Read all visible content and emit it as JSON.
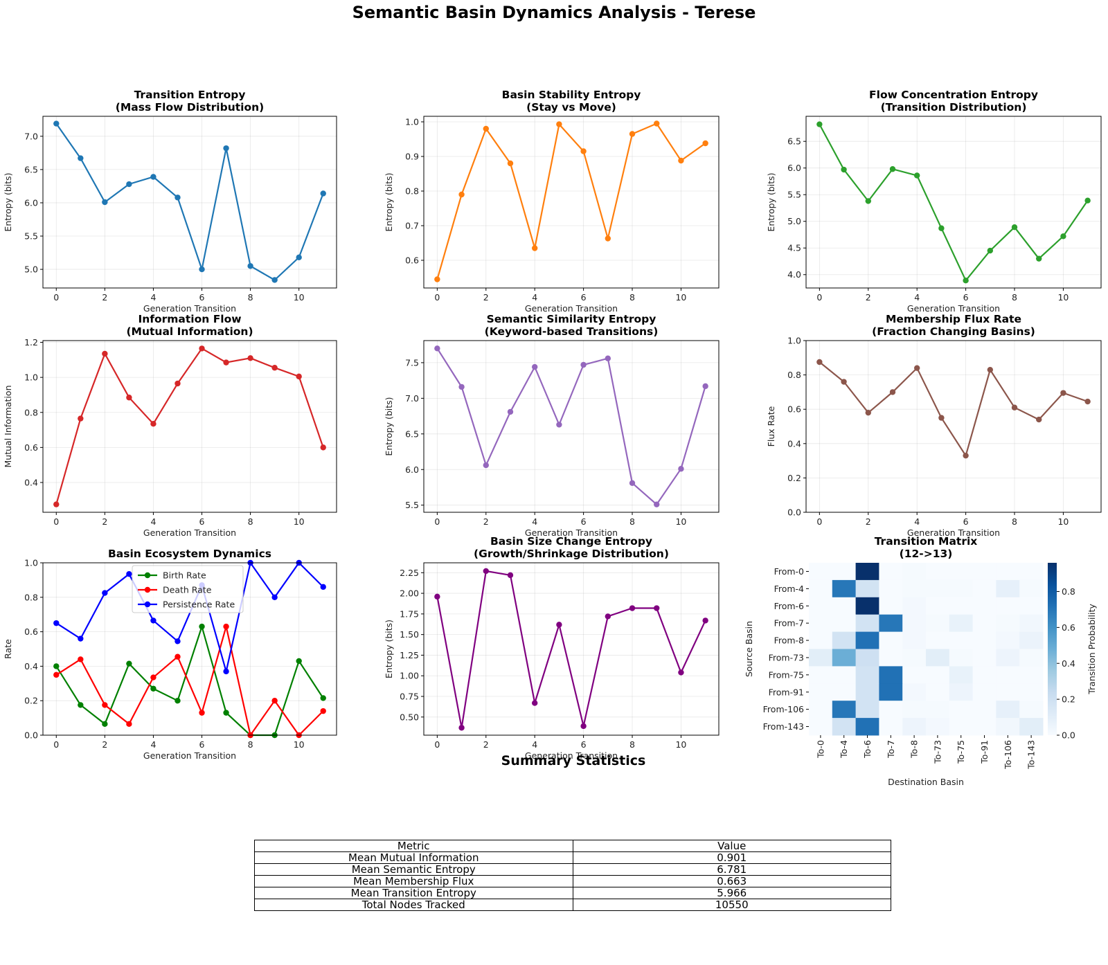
{
  "figure": {
    "title": "Semantic Basin Dynamics Analysis - Terese"
  },
  "colors": {
    "blue": "#1f77b4",
    "orange": "#ff7f0e",
    "green": "#2ca02c",
    "red": "#d62728",
    "purple": "#9467bd",
    "brown": "#8c564b",
    "darkgreen": "#008000",
    "pure_red": "#ff0000",
    "pure_blue": "#0000ff",
    "darkpurple": "#800080"
  },
  "chart_data": [
    {
      "id": "transition-entropy",
      "type": "line",
      "title": "Transition Entropy\n(Mass Flow Distribution)",
      "xlabel": "Generation Transition",
      "ylabel": "Entropy (bits)",
      "xlim": [
        -0.55,
        11.55
      ],
      "ylim": [
        4.72,
        7.3
      ],
      "xticks": [
        0,
        2,
        4,
        6,
        8,
        10
      ],
      "yticks": [
        5.0,
        5.5,
        6.0,
        6.5,
        7.0
      ],
      "ytick_labels": [
        "5.0",
        "5.5",
        "6.0",
        "6.5",
        "7.0"
      ],
      "series": [
        {
          "name": "Transition Entropy",
          "color": "#1f77b4",
          "x": [
            0,
            1,
            2,
            3,
            4,
            5,
            6,
            7,
            8,
            9,
            10,
            11
          ],
          "values": [
            7.19,
            6.67,
            6.01,
            6.28,
            6.39,
            6.08,
            5.0,
            6.82,
            5.05,
            4.84,
            5.18,
            6.14
          ]
        }
      ]
    },
    {
      "id": "basin-stability-entropy",
      "type": "line",
      "title": "Basin Stability Entropy\n(Stay vs Move)",
      "xlabel": "Generation Transition",
      "ylabel": "Entropy (bits)",
      "xlim": [
        -0.55,
        11.55
      ],
      "ylim": [
        0.52,
        1.016
      ],
      "xticks": [
        0,
        2,
        4,
        6,
        8,
        10
      ],
      "yticks": [
        0.6,
        0.7,
        0.8,
        0.9,
        1.0
      ],
      "ytick_labels": [
        "0.6",
        "0.7",
        "0.8",
        "0.9",
        "1.0"
      ],
      "series": [
        {
          "name": "Basin Stability Entropy",
          "color": "#ff7f0e",
          "x": [
            0,
            1,
            2,
            3,
            4,
            5,
            6,
            7,
            8,
            9,
            10,
            11
          ],
          "values": [
            0.545,
            0.79,
            0.98,
            0.88,
            0.635,
            0.993,
            0.915,
            0.663,
            0.965,
            0.995,
            0.888,
            0.938
          ]
        }
      ]
    },
    {
      "id": "flow-concentration-entropy",
      "type": "line",
      "title": "Flow Concentration Entropy\n(Transition Distribution)",
      "xlabel": "Generation Transition",
      "ylabel": "Entropy (bits)",
      "xlim": [
        -0.55,
        11.55
      ],
      "ylim": [
        3.75,
        6.97
      ],
      "xticks": [
        0,
        2,
        4,
        6,
        8,
        10
      ],
      "yticks": [
        4.0,
        4.5,
        5.0,
        5.5,
        6.0,
        6.5
      ],
      "ytick_labels": [
        "4.0",
        "4.5",
        "5.0",
        "5.5",
        "6.0",
        "6.5"
      ],
      "series": [
        {
          "name": "Flow Concentration Entropy",
          "color": "#2ca02c",
          "x": [
            0,
            1,
            2,
            3,
            4,
            5,
            6,
            7,
            8,
            9,
            10,
            11
          ],
          "values": [
            6.82,
            5.97,
            5.38,
            5.98,
            5.86,
            4.87,
            3.89,
            4.45,
            4.89,
            4.3,
            4.72,
            5.39
          ]
        }
      ]
    },
    {
      "id": "information-flow",
      "type": "line",
      "title": "Information Flow\n(Mutual Information)",
      "xlabel": "Generation Transition",
      "ylabel": "Mutual Information",
      "xlim": [
        -0.55,
        11.55
      ],
      "ylim": [
        0.23,
        1.21
      ],
      "xticks": [
        0,
        2,
        4,
        6,
        8,
        10
      ],
      "yticks": [
        0.4,
        0.6,
        0.8,
        1.0,
        1.2
      ],
      "ytick_labels": [
        "0.4",
        "0.6",
        "0.8",
        "1.0",
        "1.2"
      ],
      "series": [
        {
          "name": "Mutual Information",
          "color": "#d62728",
          "x": [
            0,
            1,
            2,
            3,
            4,
            5,
            6,
            7,
            8,
            9,
            10,
            11
          ],
          "values": [
            0.275,
            0.765,
            1.135,
            0.885,
            0.735,
            0.965,
            1.165,
            1.085,
            1.11,
            1.055,
            1.005,
            0.6
          ]
        }
      ]
    },
    {
      "id": "semantic-similarity-entropy",
      "type": "line",
      "title": "Semantic Similarity Entropy\n(Keyword-based Transitions)",
      "xlabel": "Generation Transition",
      "ylabel": "Entropy (bits)",
      "xlim": [
        -0.55,
        11.55
      ],
      "ylim": [
        5.4,
        7.81
      ],
      "xticks": [
        0,
        2,
        4,
        6,
        8,
        10
      ],
      "yticks": [
        5.5,
        6.0,
        6.5,
        7.0,
        7.5
      ],
      "ytick_labels": [
        "5.5",
        "6.0",
        "6.5",
        "7.0",
        "7.5"
      ],
      "series": [
        {
          "name": "Semantic Similarity Entropy",
          "color": "#9467bd",
          "x": [
            0,
            1,
            2,
            3,
            4,
            5,
            6,
            7,
            8,
            9,
            10,
            11
          ],
          "values": [
            7.7,
            7.16,
            6.06,
            6.81,
            7.44,
            6.63,
            7.47,
            7.56,
            5.81,
            5.51,
            6.01,
            7.17
          ]
        }
      ]
    },
    {
      "id": "membership-flux-rate",
      "type": "line",
      "title": "Membership Flux Rate\n(Fraction Changing Basins)",
      "xlabel": "Generation Transition",
      "ylabel": "Flux Rate",
      "xlim": [
        -0.55,
        11.55
      ],
      "ylim": [
        0.0,
        1.0
      ],
      "xticks": [
        0,
        2,
        4,
        6,
        8,
        10
      ],
      "yticks": [
        0.0,
        0.2,
        0.4,
        0.6,
        0.8,
        1.0
      ],
      "ytick_labels": [
        "0.0",
        "0.2",
        "0.4",
        "0.6",
        "0.8",
        "1.0"
      ],
      "series": [
        {
          "name": "Flux Rate",
          "color": "#8c564b",
          "x": [
            0,
            1,
            2,
            3,
            4,
            5,
            6,
            7,
            8,
            9,
            10,
            11
          ],
          "values": [
            0.875,
            0.76,
            0.58,
            0.7,
            0.84,
            0.55,
            0.33,
            0.83,
            0.61,
            0.54,
            0.695,
            0.645
          ]
        }
      ]
    },
    {
      "id": "basin-ecosystem-dynamics",
      "type": "line",
      "title": "Basin Ecosystem Dynamics",
      "xlabel": "Generation Transition",
      "ylabel": "Rate",
      "xlim": [
        -0.55,
        11.55
      ],
      "ylim": [
        0.0,
        1.0
      ],
      "xticks": [
        0,
        2,
        4,
        6,
        8,
        10
      ],
      "yticks": [
        0.0,
        0.2,
        0.4,
        0.6,
        0.8,
        1.0
      ],
      "ytick_labels": [
        "0.0",
        "0.2",
        "0.4",
        "0.6",
        "0.8",
        "1.0"
      ],
      "legend": "upper center",
      "series": [
        {
          "name": "Birth Rate",
          "color": "#008000",
          "x": [
            0,
            1,
            2,
            3,
            4,
            5,
            6,
            7,
            8,
            9,
            10,
            11
          ],
          "values": [
            0.4,
            0.175,
            0.065,
            0.415,
            0.27,
            0.2,
            0.63,
            0.13,
            0.0,
            0.0,
            0.43,
            0.215
          ]
        },
        {
          "name": "Death Rate",
          "color": "#ff0000",
          "x": [
            0,
            1,
            2,
            3,
            4,
            5,
            6,
            7,
            8,
            9,
            10,
            11
          ],
          "values": [
            0.35,
            0.44,
            0.175,
            0.065,
            0.335,
            0.455,
            0.13,
            0.63,
            0.0,
            0.2,
            0.0,
            0.14
          ]
        },
        {
          "name": "Persistence Rate",
          "color": "#0000ff",
          "x": [
            0,
            1,
            2,
            3,
            4,
            5,
            6,
            7,
            8,
            9,
            10,
            11
          ],
          "values": [
            0.65,
            0.56,
            0.825,
            0.935,
            0.665,
            0.545,
            0.87,
            0.37,
            1.0,
            0.8,
            1.0,
            0.86
          ]
        }
      ]
    },
    {
      "id": "basin-size-change-entropy",
      "type": "line",
      "title": "Basin Size Change Entropy\n(Growth/Shrinkage Distribution)",
      "xlabel": "Generation Transition",
      "ylabel": "Entropy (bits)",
      "xlim": [
        -0.55,
        11.55
      ],
      "ylim": [
        0.28,
        2.37
      ],
      "xticks": [
        0,
        2,
        4,
        6,
        8,
        10
      ],
      "yticks": [
        0.5,
        0.75,
        1.0,
        1.25,
        1.5,
        1.75,
        2.0,
        2.25
      ],
      "ytick_labels": [
        "0.50",
        "0.75",
        "1.00",
        "1.25",
        "1.50",
        "1.75",
        "2.00",
        "2.25"
      ],
      "series": [
        {
          "name": "Size Change Entropy",
          "color": "#800080",
          "x": [
            0,
            1,
            2,
            3,
            4,
            5,
            6,
            7,
            8,
            9,
            10,
            11
          ],
          "values": [
            1.96,
            0.37,
            2.27,
            2.22,
            0.67,
            1.62,
            0.39,
            1.72,
            1.82,
            1.82,
            1.04,
            1.67
          ]
        }
      ]
    },
    {
      "id": "transition-matrix",
      "type": "heatmap",
      "title": "Transition Matrix\n(12->13)",
      "xlabel": "Destination Basin",
      "ylabel": "Source Basin",
      "rows": [
        "From-0",
        "From-4",
        "From-6",
        "From-7",
        "From-8",
        "From-73",
        "From-75",
        "From-91",
        "From-106",
        "From-143"
      ],
      "cols": [
        "To-0",
        "To-4",
        "To-6",
        "To-7",
        "To-8",
        "To-73",
        "To-75",
        "To-91",
        "To-106",
        "To-143"
      ],
      "values": [
        [
          0.0,
          0.0,
          0.96,
          0.0,
          0.01,
          0.0,
          0.0,
          0.0,
          0.0,
          0.0
        ],
        [
          0.0,
          0.7,
          0.18,
          0.0,
          0.01,
          0.01,
          0.01,
          0.0,
          0.08,
          0.01
        ],
        [
          0.0,
          0.0,
          0.96,
          0.0,
          0.02,
          0.0,
          0.0,
          0.0,
          0.0,
          0.0
        ],
        [
          0.0,
          0.0,
          0.18,
          0.7,
          0.02,
          0.01,
          0.07,
          0.0,
          0.01,
          0.03
        ],
        [
          0.0,
          0.18,
          0.72,
          0.0,
          0.02,
          0.0,
          0.0,
          0.0,
          0.02,
          0.06
        ],
        [
          0.1,
          0.48,
          0.2,
          0.0,
          0.01,
          0.1,
          0.01,
          0.0,
          0.05,
          0.01
        ],
        [
          0.0,
          0.0,
          0.18,
          0.72,
          0.0,
          0.0,
          0.07,
          0.0,
          0.0,
          0.0
        ],
        [
          0.0,
          0.0,
          0.18,
          0.72,
          0.02,
          0.0,
          0.05,
          0.0,
          0.0,
          0.0
        ],
        [
          0.0,
          0.7,
          0.18,
          0.0,
          0.01,
          0.01,
          0.0,
          0.0,
          0.08,
          0.01
        ],
        [
          0.0,
          0.18,
          0.72,
          0.0,
          0.05,
          0.02,
          0.0,
          0.0,
          0.03,
          0.1
        ]
      ],
      "colorbar": {
        "label": "Transition Probability",
        "range": [
          0.0,
          0.96
        ],
        "ticks": [
          0.0,
          0.2,
          0.4,
          0.6,
          0.8
        ],
        "tick_labels": [
          "0.0",
          "0.2",
          "0.4",
          "0.6",
          "0.8"
        ]
      }
    }
  ],
  "summary": {
    "title": "Summary Statistics",
    "headers": [
      "Metric",
      "Value"
    ],
    "rows": [
      [
        "Mean Mutual Information",
        "0.901"
      ],
      [
        "Mean Semantic Entropy",
        "6.781"
      ],
      [
        "Mean Membership Flux",
        "0.663"
      ],
      [
        "Mean Transition Entropy",
        "5.966"
      ],
      [
        "Total Nodes Tracked",
        "10550"
      ]
    ]
  }
}
